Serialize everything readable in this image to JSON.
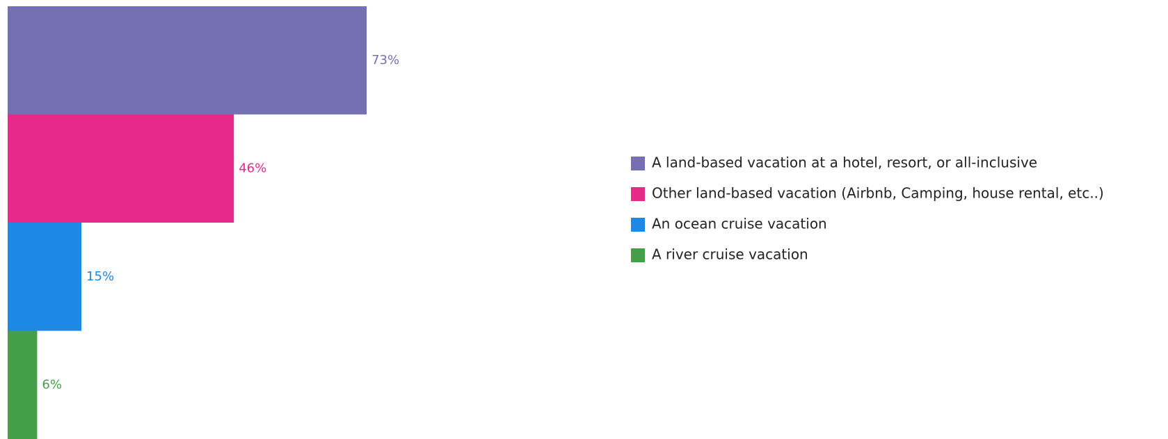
{
  "chart_data": {
    "type": "bar",
    "orientation": "horizontal",
    "categories": [
      "A land-based vacation at a hotel, resort, or all-inclusive",
      "Other land-based vacation (Airbnb, Camping, house rental, etc..)",
      "An ocean cruise vacation",
      "A river cruise vacation"
    ],
    "values": [
      73,
      46,
      15,
      6
    ],
    "value_labels": [
      "73%",
      "46%",
      "15%",
      "6%"
    ],
    "colors": [
      "#7570b3",
      "#e7298a",
      "#1e88e5",
      "#43a047"
    ],
    "legend": "right"
  }
}
